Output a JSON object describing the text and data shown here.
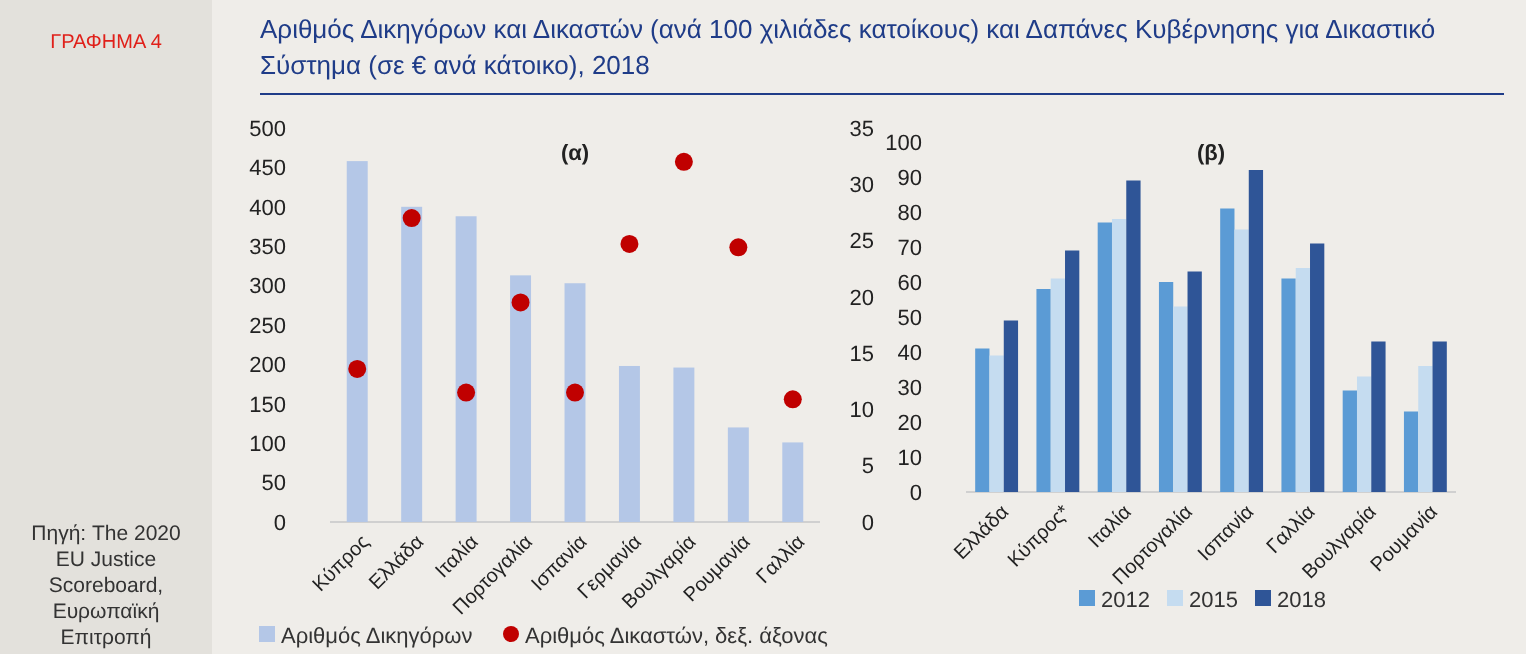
{
  "chart_data": [
    {
      "type": "bar",
      "title": "Αριθμός Δικηγόρων και Δικαστών (ανά 100 χιλιάδες κατοίκους) και Δαπάνες Κυβέρνησης για Δικαστικό Σύστημα (σε € ανά κάτοικο), 2018",
      "subtitle": "(α)",
      "annotations": [
        "ΓΡΑΦΗΜΑ 4",
        "Πηγή: The 2020 EU Justice Scoreboard, Ευρωπαϊκή Επιτροπή"
      ],
      "categories": [
        "Κύπρος",
        "Ελλάδα",
        "Ιταλία",
        "Πορτογαλία",
        "Ισπανία",
        "Γερμανία",
        "Βουλγαρία",
        "Ρουμανία",
        "Γαλλία"
      ],
      "series": [
        {
          "name": "Αριθμός Δικηγόρων",
          "color": "#b4c7e7",
          "values": [
            458,
            400,
            388,
            313,
            303,
            198,
            196,
            120,
            101
          ]
        },
        {
          "name": "Αριθμός Δικαστών, δεξ. άξονας",
          "type": "scatter",
          "axis": "y2",
          "marker": "circle",
          "color": "#c00000",
          "values": [
            13.6,
            27,
            11.5,
            19.5,
            11.5,
            24.7,
            32,
            24.4,
            10.9
          ]
        }
      ],
      "ylim": [
        0,
        500
      ],
      "yticks": [
        0,
        50,
        100,
        150,
        200,
        250,
        300,
        350,
        400,
        450,
        500
      ],
      "y2lim": [
        0,
        35
      ],
      "y2ticks": [
        0,
        5,
        10,
        15,
        20,
        25,
        30,
        35
      ],
      "grid": false,
      "legend": "bottom"
    },
    {
      "type": "bar",
      "title": "(β)",
      "categories": [
        "Ελλάδα",
        "Κύπρος*",
        "Ιταλία",
        "Πορτογαλία",
        "Ισπανία",
        "Γαλλία",
        "Βουλγαρία",
        "Ρουμανία"
      ],
      "series": [
        {
          "name": "2012",
          "color": "#5b9bd5",
          "values": [
            41,
            58,
            77,
            60,
            81,
            61,
            29,
            23
          ]
        },
        {
          "name": "2015",
          "color": "#c5dcf0",
          "values": [
            39,
            61,
            78,
            53,
            75,
            64,
            33,
            36
          ]
        },
        {
          "name": "2018",
          "color": "#2f5597",
          "values": [
            49,
            69,
            89,
            63,
            92,
            71,
            43,
            43
          ]
        }
      ],
      "ylim": [
        0,
        100
      ],
      "yticks": [
        0,
        10,
        20,
        30,
        40,
        50,
        60,
        70,
        80,
        90,
        100
      ],
      "grid": false,
      "legend": "bottom"
    }
  ]
}
